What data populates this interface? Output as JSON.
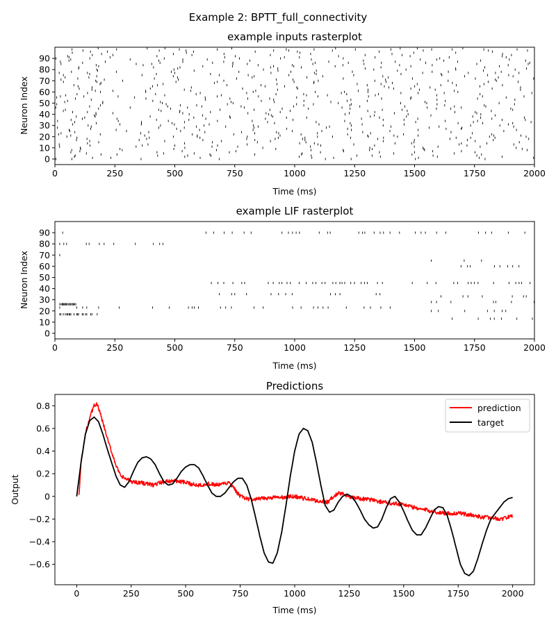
{
  "figure": {
    "suptitle": "Example 2: BPTT_full_connectivity"
  },
  "chart_data": [
    {
      "type": "scatter",
      "subtype": "raster",
      "title": "example inputs rasterplot",
      "xlabel": "Time (ms)",
      "ylabel": "Neuron Index",
      "xlim": [
        0,
        2000
      ],
      "ylim": [
        -5,
        100
      ],
      "xticks": [
        0,
        250,
        500,
        750,
        1000,
        1250,
        1500,
        1750,
        2000
      ],
      "yticks": [
        0,
        10,
        20,
        30,
        40,
        50,
        60,
        70,
        80,
        90
      ],
      "marker_color": "#000000",
      "neurons": 100,
      "pattern": "random sparse Poisson-like spikes for all 100 neurons across 0-2000 ms (~900 spikes)"
    },
    {
      "type": "scatter",
      "subtype": "raster",
      "title": "example LIF rasterplot",
      "xlabel": "Time (ms)",
      "ylabel": "Neuron Index",
      "xlim": [
        0,
        2000
      ],
      "ylim": [
        -5,
        100
      ],
      "xticks": [
        0,
        250,
        500,
        750,
        1000,
        1250,
        1500,
        1750,
        2000
      ],
      "yticks": [
        0,
        10,
        20,
        30,
        40,
        50,
        60,
        70,
        80,
        90
      ],
      "marker_color": "#000000",
      "active_neurons": [
        {
          "neuron": 98,
          "start": 20,
          "end": 30,
          "rate": 0.5
        },
        {
          "neuron": 90,
          "start": 15,
          "end": 35,
          "rate": 0.5
        },
        {
          "neuron": 90,
          "start": 630,
          "end": 2000,
          "rate": 0.45
        },
        {
          "neuron": 80,
          "start": 20,
          "end": 500,
          "rate": 0.45
        },
        {
          "neuron": 70,
          "start": 20,
          "end": 35,
          "rate": 0.5
        },
        {
          "neuron": 45,
          "start": 635,
          "end": 1500,
          "rate": 0.6
        },
        {
          "neuron": 45,
          "start": 1530,
          "end": 2000,
          "rate": 0.5
        },
        {
          "neuron": 42,
          "start": 15,
          "end": 35,
          "rate": 0.5
        },
        {
          "neuron": 35,
          "start": 650,
          "end": 1500,
          "rate": 0.3
        },
        {
          "neuron": 26,
          "start": 20,
          "end": 90,
          "rate": 1.0
        },
        {
          "neuron": 23,
          "start": 20,
          "end": 1400,
          "rate": 0.35
        },
        {
          "neuron": 17,
          "start": 20,
          "end": 180,
          "rate": 0.7
        },
        {
          "neuron": 3,
          "start": 20,
          "end": 30,
          "rate": 0.5
        },
        {
          "neuron": 65,
          "start": 1570,
          "end": 2000,
          "rate": 0.3
        },
        {
          "neuron": 60,
          "start": 1570,
          "end": 2000,
          "rate": 0.3
        },
        {
          "neuron": 33,
          "start": 1560,
          "end": 2000,
          "rate": 0.3
        },
        {
          "neuron": 28,
          "start": 1570,
          "end": 2000,
          "rate": 0.3
        },
        {
          "neuron": 20,
          "start": 1570,
          "end": 2000,
          "rate": 0.3
        },
        {
          "neuron": 13,
          "start": 1580,
          "end": 2000,
          "rate": 0.3
        }
      ]
    },
    {
      "type": "line",
      "title": "Predictions",
      "xlabel": "Time (ms)",
      "ylabel": "Output",
      "xlim": [
        -100,
        2100
      ],
      "ylim": [
        -0.78,
        0.9
      ],
      "xticks": [
        0,
        250,
        500,
        750,
        1000,
        1250,
        1500,
        1750,
        2000
      ],
      "yticks": [
        -0.6,
        -0.4,
        -0.2,
        0.0,
        0.2,
        0.4,
        0.6,
        0.8
      ],
      "legend": "upper right",
      "series": [
        {
          "name": "prediction",
          "color": "#ff0000",
          "noise": 0.018,
          "x": [
            10,
            20,
            40,
            60,
            80,
            90,
            100,
            120,
            150,
            180,
            200,
            250,
            300,
            350,
            400,
            450,
            500,
            550,
            600,
            650,
            700,
            750,
            800,
            850,
            900,
            950,
            1000,
            1050,
            1100,
            1150,
            1200,
            1250,
            1300,
            1350,
            1400,
            1450,
            1500,
            1550,
            1600,
            1650,
            1700,
            1750,
            1800,
            1850,
            1900,
            1950,
            2000
          ],
          "y": [
            0.0,
            0.3,
            0.55,
            0.7,
            0.8,
            0.82,
            0.78,
            0.65,
            0.45,
            0.28,
            0.18,
            0.13,
            0.12,
            0.1,
            0.13,
            0.14,
            0.12,
            0.1,
            0.11,
            0.1,
            0.12,
            0.0,
            -0.03,
            -0.02,
            -0.01,
            -0.01,
            0.0,
            -0.02,
            -0.04,
            -0.05,
            0.03,
            0.0,
            -0.02,
            -0.03,
            -0.05,
            -0.06,
            -0.07,
            -0.1,
            -0.12,
            -0.14,
            -0.15,
            -0.15,
            -0.16,
            -0.18,
            -0.19,
            -0.2,
            -0.17
          ]
        },
        {
          "name": "target",
          "color": "#000000",
          "x": [
            0,
            20,
            40,
            60,
            80,
            100,
            120,
            140,
            160,
            180,
            200,
            220,
            240,
            260,
            280,
            300,
            320,
            340,
            360,
            380,
            400,
            420,
            440,
            460,
            480,
            500,
            520,
            540,
            560,
            580,
            600,
            620,
            640,
            660,
            680,
            700,
            720,
            740,
            760,
            780,
            800,
            820,
            840,
            860,
            880,
            900,
            920,
            940,
            960,
            980,
            1000,
            1020,
            1040,
            1060,
            1080,
            1100,
            1120,
            1140,
            1160,
            1180,
            1200,
            1220,
            1240,
            1260,
            1280,
            1300,
            1320,
            1340,
            1360,
            1380,
            1400,
            1420,
            1440,
            1460,
            1480,
            1500,
            1520,
            1540,
            1560,
            1580,
            1600,
            1620,
            1640,
            1660,
            1680,
            1700,
            1720,
            1740,
            1760,
            1780,
            1800,
            1820,
            1840,
            1860,
            1880,
            1900,
            1920,
            1940,
            1960,
            1980,
            2000
          ],
          "y": [
            0.0,
            0.3,
            0.55,
            0.67,
            0.7,
            0.66,
            0.55,
            0.42,
            0.3,
            0.18,
            0.1,
            0.08,
            0.13,
            0.22,
            0.3,
            0.34,
            0.35,
            0.33,
            0.28,
            0.2,
            0.13,
            0.1,
            0.11,
            0.16,
            0.22,
            0.26,
            0.28,
            0.28,
            0.25,
            0.18,
            0.1,
            0.03,
            0.0,
            0.0,
            0.03,
            0.08,
            0.13,
            0.16,
            0.16,
            0.1,
            -0.02,
            -0.18,
            -0.35,
            -0.5,
            -0.58,
            -0.59,
            -0.5,
            -0.32,
            -0.08,
            0.18,
            0.4,
            0.55,
            0.6,
            0.58,
            0.48,
            0.3,
            0.1,
            -0.08,
            -0.14,
            -0.12,
            -0.05,
            0.0,
            0.02,
            0.0,
            -0.05,
            -0.12,
            -0.2,
            -0.25,
            -0.28,
            -0.27,
            -0.2,
            -0.1,
            -0.02,
            0.0,
            -0.05,
            -0.13,
            -0.22,
            -0.3,
            -0.34,
            -0.34,
            -0.28,
            -0.2,
            -0.12,
            -0.09,
            -0.1,
            -0.17,
            -0.3,
            -0.45,
            -0.6,
            -0.68,
            -0.7,
            -0.66,
            -0.55,
            -0.42,
            -0.3,
            -0.2,
            -0.15,
            -0.1,
            -0.05,
            -0.02,
            -0.01
          ]
        }
      ]
    }
  ]
}
